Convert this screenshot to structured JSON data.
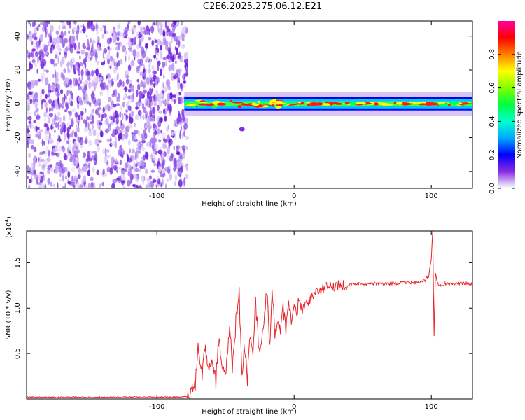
{
  "title": "C2E6.2025.275.06.12.E21",
  "colors": {
    "signal": "#e8232a",
    "background": "#ffffff",
    "axis": "#000000"
  },
  "chart_data": [
    {
      "type": "heatmap",
      "title": "C2E6.2025.275.06.12.E21",
      "xlabel": "Height of straight line (km)",
      "ylabel": "Frequency (Hz)",
      "xlim": [
        -195,
        130
      ],
      "ylim": [
        -50,
        49
      ],
      "xticks": [
        -100,
        0,
        100
      ],
      "xtick_labels": [
        "-100",
        "0",
        "100"
      ],
      "yticks": [
        -40,
        -20,
        0,
        20,
        40
      ],
      "ytick_labels": [
        "-40",
        "-20",
        "0",
        "20",
        "40"
      ],
      "noise_region_x": [
        -195,
        -80
      ],
      "signal_band": {
        "x_start": -80,
        "x_end": 130,
        "center_hz": 0,
        "halfwidth_hz": 3
      },
      "colorbar": {
        "label": "Normalized spectral amplitude",
        "range": [
          0,
          1
        ],
        "ticks": [
          0,
          0.2,
          0.4,
          0.6,
          0.8
        ],
        "tick_labels": [
          "0.0",
          "0.2",
          "0.4",
          "0.6",
          "0.8"
        ]
      }
    },
    {
      "type": "line",
      "xlabel": "Height of straight line (km)",
      "ylabel": "SNR (10 * v/v)",
      "ylabel_multiplier": "(x10",
      "ylabel_exponent": "4",
      "ylabel_multiplier_close": ")",
      "xlim": [
        -195,
        130
      ],
      "ylim": [
        0,
        1.85
      ],
      "xticks": [
        -100,
        0,
        100
      ],
      "xtick_labels": [
        "-100",
        "0",
        "100"
      ],
      "yticks": [
        0.5,
        1.0,
        1.5
      ],
      "ytick_labels": [
        "0.5",
        "1.0",
        "1.5"
      ],
      "series": [
        {
          "name": "SNR",
          "x": [
            -195,
            -180,
            -160,
            -140,
            -120,
            -100,
            -85,
            -77,
            -72,
            -70,
            -67,
            -65,
            -62,
            -60,
            -57,
            -55,
            -52,
            -50,
            -47,
            -45,
            -42,
            -40,
            -38,
            -36,
            -34,
            -32,
            -30,
            -28,
            -26,
            -24,
            -22,
            -20,
            -18,
            -16,
            -14,
            -12,
            -10,
            -8,
            -6,
            -4,
            -2,
            0,
            2,
            4,
            6,
            8,
            10,
            12,
            14,
            16,
            18,
            20,
            25,
            30,
            35,
            40,
            50,
            60,
            70,
            80,
            90,
            95,
            98,
            100,
            101,
            102,
            103,
            104,
            106,
            110,
            120,
            130
          ],
          "y": [
            0.02,
            0.02,
            0.02,
            0.02,
            0.02,
            0.02,
            0.02,
            0.03,
            0.15,
            0.55,
            0.25,
            0.6,
            0.3,
            0.45,
            0.2,
            0.65,
            0.35,
            0.25,
            0.8,
            0.35,
            0.95,
            1.15,
            0.3,
            0.6,
            0.2,
            0.75,
            0.45,
            1.1,
            0.55,
            0.6,
            0.8,
            1.25,
            0.55,
            1.3,
            0.65,
            0.9,
            0.7,
            1.0,
            0.75,
            1.05,
            0.85,
            1.0,
            0.95,
            1.15,
            0.95,
            1.1,
            1.05,
            1.12,
            1.15,
            1.18,
            1.2,
            1.2,
            1.23,
            1.25,
            1.26,
            1.26,
            1.27,
            1.27,
            1.27,
            1.28,
            1.28,
            1.3,
            1.35,
            1.55,
            1.85,
            0.7,
            1.4,
            1.3,
            1.25,
            1.27,
            1.27,
            1.27
          ]
        }
      ]
    }
  ]
}
